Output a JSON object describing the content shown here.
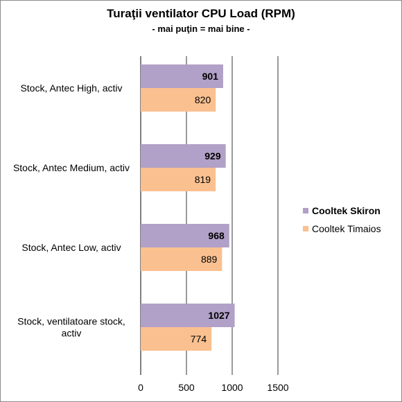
{
  "chart_data": {
    "type": "bar",
    "orientation": "horizontal",
    "title": "Turaţii ventilator CPU Load (RPM)",
    "subtitle": "- mai puţin = mai bine -",
    "categories": [
      "Stock, Antec High, activ",
      "Stock, Antec Medium, activ",
      "Stock, Antec Low, activ",
      "Stock, ventilatoare stock, activ"
    ],
    "series": [
      {
        "name": "Cooltek Skiron",
        "values": [
          901,
          929,
          968,
          1027
        ],
        "color": "#b1a0c7",
        "label_bold": true
      },
      {
        "name": "Cooltek Timaios",
        "values": [
          820,
          819,
          889,
          774
        ],
        "color": "#fac090",
        "label_bold": false
      }
    ],
    "xlim": [
      0,
      1500
    ],
    "xticks": [
      "0",
      "500",
      "1000",
      "1500"
    ],
    "grid": true,
    "legend_position": "right"
  }
}
